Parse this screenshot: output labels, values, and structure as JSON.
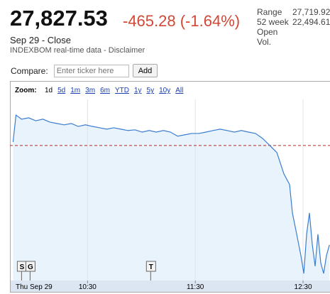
{
  "quote": {
    "price": "27,827.53",
    "change": "-465.28 (-1.64%)",
    "date": "Sep 29 - Close",
    "source": "INDEXBOM real-time data - ",
    "disclaimer": "Disclaimer"
  },
  "stats": [
    {
      "label": "Range",
      "value": "27,719.92"
    },
    {
      "label": "52 week",
      "value": "22,494.61"
    },
    {
      "label": "Open"
    },
    {
      "label": "Vol."
    }
  ],
  "compare": {
    "label": "Compare:",
    "placeholder": "Enter ticker here",
    "button": "Add"
  },
  "zoom": {
    "label": "Zoom:",
    "options": [
      "1d",
      "5d",
      "1m",
      "3m",
      "6m",
      "YTD",
      "1y",
      "5y",
      "10y",
      "All"
    ]
  },
  "chart_data": {
    "type": "line",
    "x_label": "Thu Sep 29",
    "x": [
      9.809,
      9.836,
      9.888,
      9.954,
      10.02,
      10.086,
      10.151,
      10.217,
      10.283,
      10.349,
      10.414,
      10.48,
      10.546,
      10.612,
      10.678,
      10.743,
      10.809,
      10.875,
      10.941,
      11.007,
      11.072,
      11.138,
      11.204,
      11.27,
      11.336,
      11.401,
      11.467,
      11.533,
      11.599,
      11.664,
      11.73,
      11.796,
      11.862,
      11.928,
      11.993,
      12.059,
      12.125,
      12.191,
      12.257,
      12.322,
      12.375,
      12.401,
      12.441,
      12.48,
      12.507,
      12.533,
      12.559,
      12.586,
      12.612,
      12.638,
      12.664,
      12.691,
      12.717,
      12.745
    ],
    "series": [
      {
        "color": "#3b7dd0",
        "values": [
          28308,
          28427,
          28409,
          28415,
          28402,
          28409,
          28396,
          28390,
          28384,
          28390,
          28377,
          28384,
          28377,
          28371,
          28365,
          28371,
          28365,
          28359,
          28362,
          28352,
          28359,
          28352,
          28359,
          28352,
          28334,
          28340,
          28346,
          28346,
          28352,
          28359,
          28365,
          28359,
          28352,
          28359,
          28352,
          28346,
          28324,
          28293,
          28262,
          28168,
          28121,
          27996,
          27902,
          27808,
          27729,
          27902,
          27996,
          27855,
          27761,
          27902,
          27776,
          27729,
          27808,
          27855
        ]
      }
    ],
    "xlim": [
      9.78,
      12.75
    ],
    "xticks": [
      {
        "value": 10.5,
        "label": "10:30"
      },
      {
        "value": 11.5,
        "label": "11:30"
      },
      {
        "value": 12.5,
        "label": "12:30"
      }
    ],
    "ylim": [
      27698,
      28496
    ],
    "reference_line": {
      "value": 28292.81,
      "color": "#b52a2a"
    },
    "area_color": "#e9f3fc",
    "grid": true,
    "annotations": [
      {
        "label": "S",
        "x": 9.888
      },
      {
        "label": "G",
        "x": 9.967
      },
      {
        "label": "T",
        "x": 11.086
      }
    ]
  }
}
